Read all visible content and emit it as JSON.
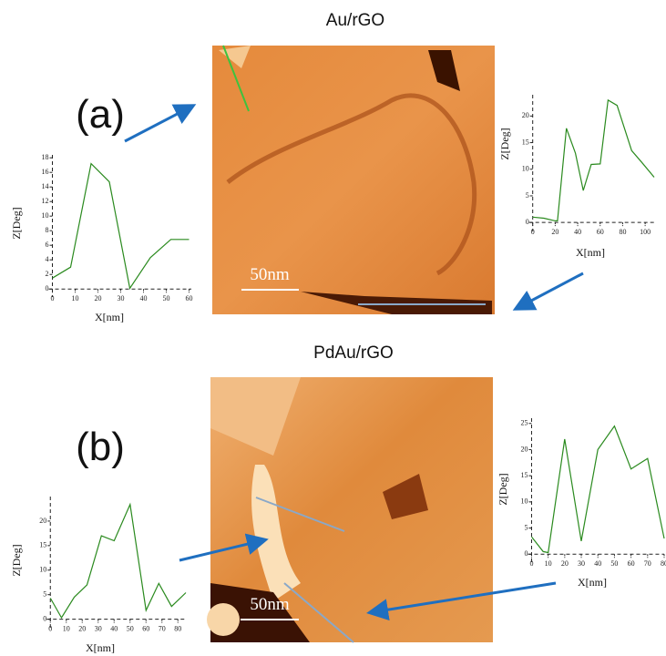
{
  "panels": [
    {
      "label": "(a)",
      "title": "Au/rGO",
      "scale_bar": "50nm"
    },
    {
      "label": "(b)",
      "title": "PdAu/rGO",
      "scale_bar": "50nm"
    }
  ],
  "chart_data": [
    {
      "type": "line",
      "xlabel": "X[nm]",
      "ylabel": "Z[Deg]",
      "color": "#2a8a1e",
      "x": [
        0,
        8,
        17,
        25,
        34,
        43,
        52,
        60
      ],
      "values": [
        1.5,
        3,
        17.2,
        14.7,
        0.1,
        4.3,
        6.8,
        6.8
      ],
      "xlim": [
        -3,
        61
      ],
      "ylim": [
        -0.6,
        18.4
      ],
      "xticks": [
        0,
        10,
        20,
        30,
        40,
        50,
        60
      ],
      "yticks": [
        0,
        2,
        4,
        6,
        8,
        10,
        12,
        14,
        16,
        18
      ]
    },
    {
      "type": "line",
      "xlabel": "X[nm]",
      "ylabel": "Z[Deg]",
      "color": "#2a8a1e",
      "x": [
        0,
        10,
        20,
        22,
        30,
        38,
        45,
        52,
        60,
        67,
        75,
        88,
        97,
        108
      ],
      "values": [
        1,
        0.8,
        0.3,
        0.3,
        17.7,
        13,
        6,
        10.9,
        11,
        23,
        22,
        13.5,
        11.3,
        8.5
      ],
      "xlim": [
        -3,
        108
      ],
      "ylim": [
        -1,
        24
      ],
      "xticks": [
        0,
        20,
        40,
        60,
        80,
        100
      ],
      "yticks": [
        0,
        5,
        10,
        15,
        20
      ]
    },
    {
      "type": "line",
      "xlabel": "X[nm]",
      "ylabel": "Z[Deg]",
      "color": "#2a8a1e",
      "x": [
        0,
        7,
        15,
        23,
        32,
        40,
        50,
        60,
        68,
        76,
        85
      ],
      "values": [
        4.3,
        0.3,
        4.5,
        7,
        17,
        16,
        23.4,
        1.8,
        7.3,
        2.6,
        5.4
      ],
      "xlim": [
        -3,
        85
      ],
      "ylim": [
        -1,
        25
      ],
      "xticks": [
        0,
        10,
        20,
        30,
        40,
        50,
        60,
        70,
        80
      ],
      "yticks": [
        0,
        5,
        10,
        15,
        20
      ]
    },
    {
      "type": "line",
      "xlabel": "X[nm]",
      "ylabel": "Z[Deg]",
      "color": "#2a8a1e",
      "x": [
        0,
        7,
        10,
        20,
        30,
        40,
        50,
        60,
        70,
        80
      ],
      "values": [
        3.3,
        0.5,
        0.3,
        22,
        2.5,
        20,
        24.5,
        16.3,
        18.3,
        3
      ],
      "xlim": [
        -3,
        80
      ],
      "ylim": [
        -1,
        26
      ],
      "xticks": [
        0,
        10,
        20,
        30,
        40,
        50,
        60,
        70,
        80
      ],
      "yticks": [
        0,
        5,
        10,
        15,
        20,
        25
      ]
    }
  ]
}
